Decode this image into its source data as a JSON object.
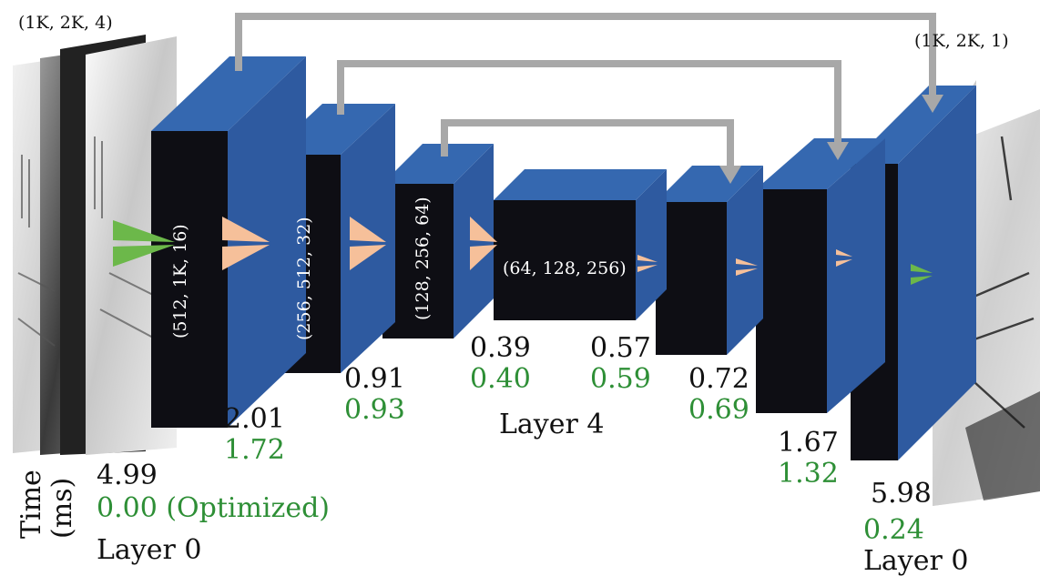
{
  "dims": {
    "input": "(1K, 2K, 4)",
    "output": "(1K, 2K, 1)",
    "enc1": "(512, 1K, 16)",
    "enc2": "(256, 512, 32)",
    "enc3": "(128, 256, 64)",
    "bottleneck": "(64, 128, 256)"
  },
  "axis": {
    "line1": "Time",
    "line2": "(ms)"
  },
  "layer_labels": {
    "left": "Layer 0",
    "middle": "Layer 4",
    "right": "Layer 0"
  },
  "times": {
    "input_original": "4.99",
    "input_optimized": "0.00 (Optimized)",
    "enc1_original": "2.01",
    "enc1_optimized": "1.72",
    "enc2_original": "0.91",
    "enc2_optimized": "0.93",
    "enc3_original": "0.39",
    "enc3_optimized": "0.40",
    "bottleneck_original": "0.57",
    "bottleneck_optimized": "0.59",
    "dec1_original": "0.72",
    "dec1_optimized": "0.69",
    "dec2_original": "1.67",
    "dec2_optimized": "1.32",
    "output_original": "5.98",
    "output_optimized": "0.24"
  },
  "colors": {
    "block_front": "#0e0e14",
    "block_side": "#2e5aa0",
    "block_top": "#3568b0",
    "skip_line": "#a8a8a8",
    "original_time": "#111111",
    "optimized_time": "#2e8f36",
    "pool_arrow": "#f6c09a",
    "io_arrow": "#6cb84a"
  }
}
